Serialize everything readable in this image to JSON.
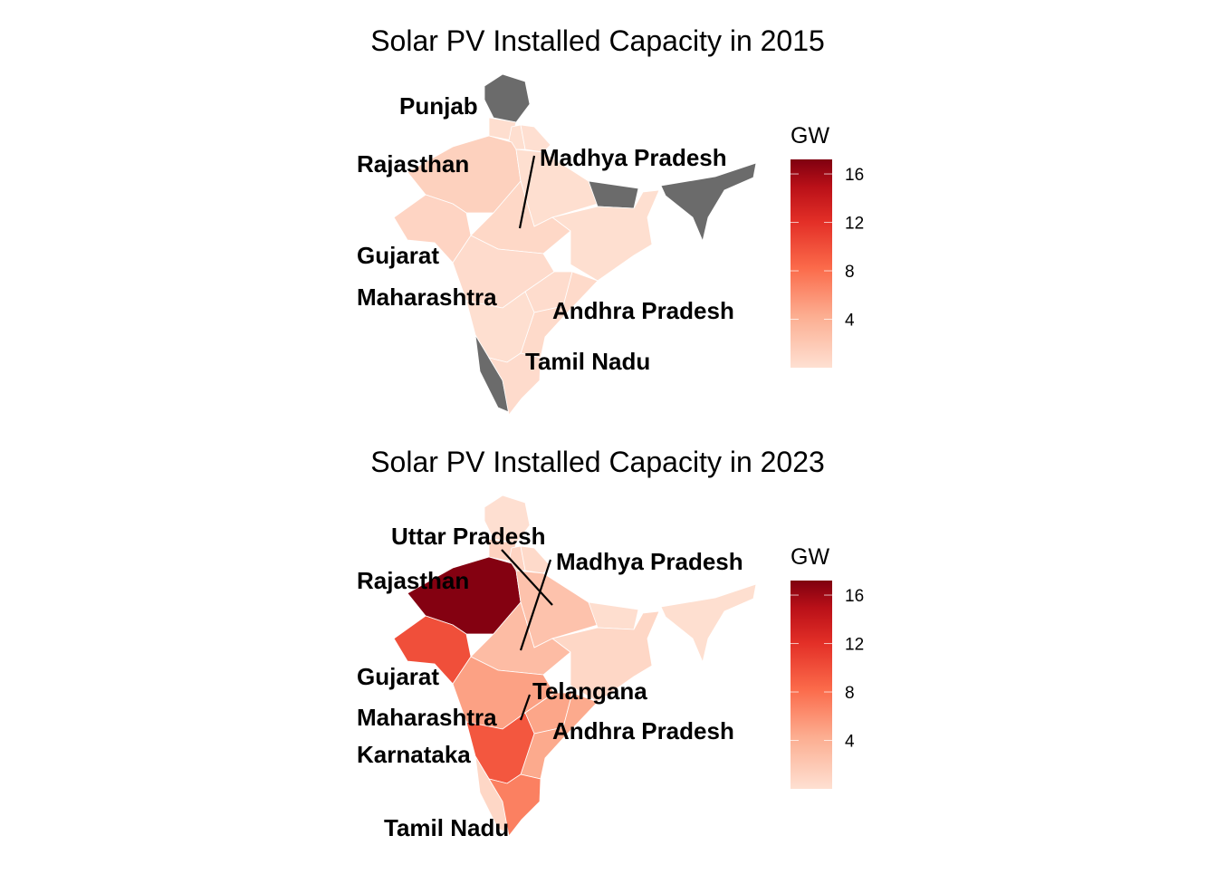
{
  "chart_data": [
    {
      "type": "choropleth",
      "title": "Solar PV Installed Capacity in 2015",
      "legend": {
        "title": "GW",
        "ticks": [
          4,
          8,
          12,
          16
        ],
        "range": [
          0,
          17.2
        ],
        "placement": "right"
      },
      "na_color": "#6b6b6b",
      "values": {
        "Jammu and Kashmir": null,
        "Punjab": 0.2,
        "Haryana": 0.1,
        "Uttarakhand": 0.05,
        "Rajasthan": 1.3,
        "Gujarat": 1.0,
        "Uttar Pradesh": 0.1,
        "Madhya Pradesh": 0.7,
        "Bihar": null,
        "East": 0.1,
        "Maharashtra": 0.4,
        "Telangana": 0.3,
        "Andhra Pradesh": 0.5,
        "Karnataka": 0.1,
        "Kerala": null,
        "Tamil Nadu": 0.4,
        "Northeast": null
      },
      "labels": [
        "Punjab",
        "Rajasthan",
        "Madhya Pradesh",
        "Gujarat",
        "Maharashtra",
        "Andhra Pradesh",
        "Tamil Nadu"
      ]
    },
    {
      "type": "choropleth",
      "title": "Solar PV Installed Capacity in 2023",
      "legend": {
        "title": "GW",
        "ticks": [
          4,
          8,
          12,
          16
        ],
        "range": [
          0,
          17.2
        ],
        "placement": "right"
      },
      "values": {
        "Jammu and Kashmir": 0.05,
        "Punjab": 1.2,
        "Haryana": 1.0,
        "Uttarakhand": 0.5,
        "Rajasthan": 17.0,
        "Gujarat": 10.0,
        "Uttar Pradesh": 2.5,
        "Madhya Pradesh": 3.0,
        "Bihar": 0.2,
        "East": 0.8,
        "Maharashtra": 5.0,
        "Telangana": 4.7,
        "Andhra Pradesh": 4.5,
        "Karnataka": 9.5,
        "Kerala": 0.8,
        "Tamil Nadu": 7.0,
        "Northeast": 0.1
      },
      "labels": [
        "Uttar Pradesh",
        "Madhya Pradesh",
        "Rajasthan",
        "Gujarat",
        "Telangana",
        "Maharashtra",
        "Andhra Pradesh",
        "Karnataka",
        "Tamil Nadu"
      ]
    }
  ]
}
